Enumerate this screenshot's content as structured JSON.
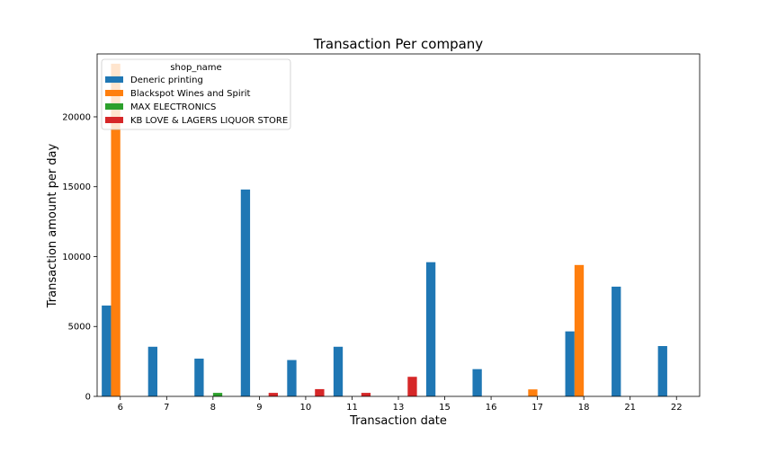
{
  "chart_data": {
    "type": "bar",
    "title": "Transaction Per company",
    "xlabel": "Transaction date",
    "ylabel": "Transaction amount per day",
    "categories": [
      "6",
      "7",
      "8",
      "9",
      "10",
      "11",
      "13",
      "15",
      "16",
      "17",
      "18",
      "21",
      "22"
    ],
    "ylim": [
      0,
      24500
    ],
    "yticks": [
      0,
      5000,
      10000,
      15000,
      20000
    ],
    "grid": false,
    "legend": {
      "title": "shop_name",
      "placement": "top-left"
    },
    "series": [
      {
        "name": "Deneric printing",
        "color": "#1f77b4",
        "values": [
          6500,
          3550,
          2700,
          14800,
          2600,
          3550,
          null,
          9600,
          1950,
          null,
          4650,
          7850,
          3600
        ]
      },
      {
        "name": "Blackspot Wines and Spirit",
        "color": "#ff7f0e",
        "values": [
          23800,
          null,
          null,
          null,
          null,
          null,
          null,
          null,
          null,
          500,
          9400,
          null,
          null
        ]
      },
      {
        "name": "MAX ELECTRONICS",
        "color": "#2ca02c",
        "values": [
          null,
          null,
          250,
          null,
          null,
          null,
          null,
          null,
          null,
          null,
          null,
          null,
          null
        ]
      },
      {
        "name": "KB LOVE & LAGERS LIQUOR STORE",
        "color": "#d62728",
        "values": [
          null,
          null,
          null,
          250,
          520,
          250,
          1400,
          null,
          null,
          null,
          null,
          null,
          null
        ]
      }
    ]
  }
}
